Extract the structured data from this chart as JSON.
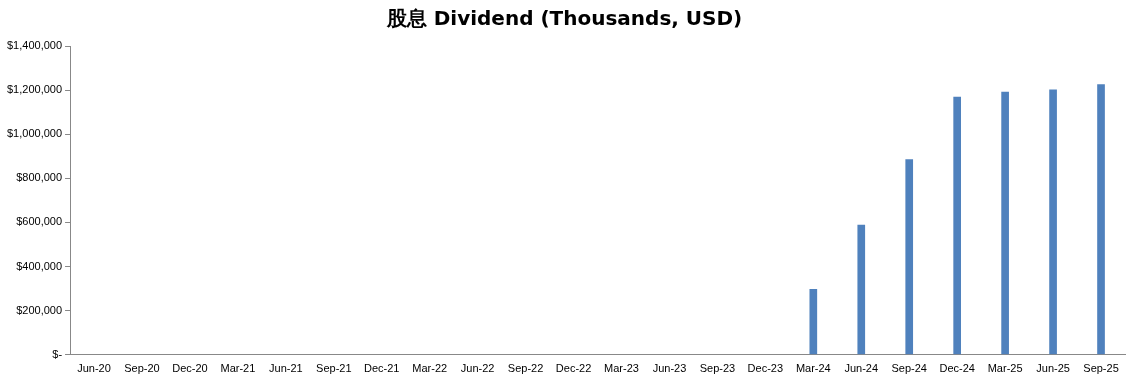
{
  "chart_data": {
    "type": "bar",
    "title": "股息 Dividend (Thousands, USD)",
    "categories": [
      "Jun-20",
      "Sep-20",
      "Dec-20",
      "Mar-21",
      "Jun-21",
      "Sep-21",
      "Dec-21",
      "Mar-22",
      "Jun-22",
      "Sep-22",
      "Dec-22",
      "Mar-23",
      "Jun-23",
      "Sep-23",
      "Dec-23",
      "Mar-24",
      "Jun-24",
      "Sep-24",
      "Dec-24",
      "Mar-25",
      "Jun-25",
      "Sep-25"
    ],
    "values": [
      0,
      0,
      0,
      0,
      0,
      0,
      0,
      0,
      0,
      0,
      0,
      0,
      0,
      0,
      0,
      298000,
      590000,
      886000,
      1170000,
      1193000,
      1203000,
      1227000
    ],
    "color": "#4f81bd",
    "ylim": [
      0,
      1400000
    ],
    "yticks": [
      {
        "value": 0,
        "label": "$-"
      },
      {
        "value": 200000,
        "label": "$200,000"
      },
      {
        "value": 400000,
        "label": "$400,000"
      },
      {
        "value": 600000,
        "label": "$600,000"
      },
      {
        "value": 800000,
        "label": "$800,000"
      },
      {
        "value": 1000000,
        "label": "$1,000,000"
      },
      {
        "value": 1200000,
        "label": "$1,200,000"
      },
      {
        "value": 1400000,
        "label": "$1,400,000"
      }
    ],
    "grid": false,
    "legend": false
  }
}
